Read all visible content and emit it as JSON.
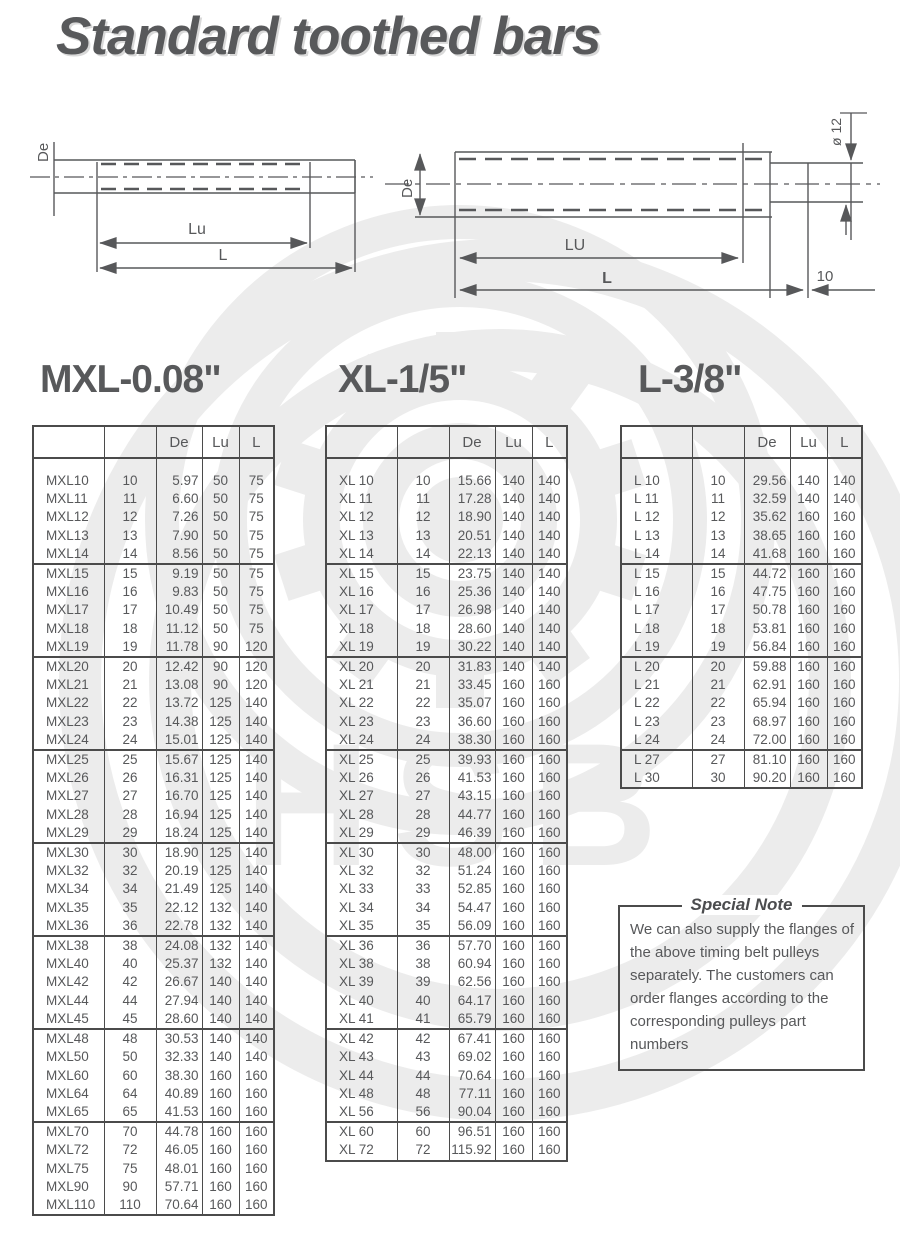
{
  "page": {
    "title": "Standard toothed bars"
  },
  "drawings": {
    "left": {
      "de": "De",
      "lu": "Lu",
      "l": "L"
    },
    "right": {
      "de": "De",
      "lu": "LU",
      "l": "L",
      "diameter": "ø 12",
      "tail": "10"
    }
  },
  "sections": [
    {
      "heading": "MXL-0.08\"",
      "columns": {
        "de": "De",
        "lu": "Lu",
        "l": "L"
      },
      "groups": [
        [
          [
            "MXL10",
            "10",
            "5.97",
            "50",
            "75"
          ],
          [
            "MXL11",
            "11",
            "6.60",
            "50",
            "75"
          ],
          [
            "MXL12",
            "12",
            "7.26",
            "50",
            "75"
          ],
          [
            "MXL13",
            "13",
            "7.90",
            "50",
            "75"
          ],
          [
            "MXL14",
            "14",
            "8.56",
            "50",
            "75"
          ]
        ],
        [
          [
            "MXL15",
            "15",
            "9.19",
            "50",
            "75"
          ],
          [
            "MXL16",
            "16",
            "9.83",
            "50",
            "75"
          ],
          [
            "MXL17",
            "17",
            "10.49",
            "50",
            "75"
          ],
          [
            "MXL18",
            "18",
            "11.12",
            "50",
            "75"
          ],
          [
            "MXL19",
            "19",
            "11.78",
            "90",
            "120"
          ]
        ],
        [
          [
            "MXL20",
            "20",
            "12.42",
            "90",
            "120"
          ],
          [
            "MXL21",
            "21",
            "13.08",
            "90",
            "120"
          ],
          [
            "MXL22",
            "22",
            "13.72",
            "125",
            "140"
          ],
          [
            "MXL23",
            "23",
            "14.38",
            "125",
            "140"
          ],
          [
            "MXL24",
            "24",
            "15.01",
            "125",
            "140"
          ]
        ],
        [
          [
            "MXL25",
            "25",
            "15.67",
            "125",
            "140"
          ],
          [
            "MXL26",
            "26",
            "16.31",
            "125",
            "140"
          ],
          [
            "MXL27",
            "27",
            "16.70",
            "125",
            "140"
          ],
          [
            "MXL28",
            "28",
            "16.94",
            "125",
            "140"
          ],
          [
            "MXL29",
            "29",
            "18.24",
            "125",
            "140"
          ]
        ],
        [
          [
            "MXL30",
            "30",
            "18.90",
            "125",
            "140"
          ],
          [
            "MXL32",
            "32",
            "20.19",
            "125",
            "140"
          ],
          [
            "MXL34",
            "34",
            "21.49",
            "125",
            "140"
          ],
          [
            "MXL35",
            "35",
            "22.12",
            "132",
            "140"
          ],
          [
            "MXL36",
            "36",
            "22.78",
            "132",
            "140"
          ]
        ],
        [
          [
            "MXL38",
            "38",
            "24.08",
            "132",
            "140"
          ],
          [
            "MXL40",
            "40",
            "25.37",
            "132",
            "140"
          ],
          [
            "MXL42",
            "42",
            "26.67",
            "140",
            "140"
          ],
          [
            "MXL44",
            "44",
            "27.94",
            "140",
            "140"
          ],
          [
            "MXL45",
            "45",
            "28.60",
            "140",
            "140"
          ]
        ],
        [
          [
            "MXL48",
            "48",
            "30.53",
            "140",
            "140"
          ],
          [
            "MXL50",
            "50",
            "32.33",
            "140",
            "140"
          ],
          [
            "MXL60",
            "60",
            "38.30",
            "160",
            "160"
          ],
          [
            "MXL64",
            "64",
            "40.89",
            "160",
            "160"
          ],
          [
            "MXL65",
            "65",
            "41.53",
            "160",
            "160"
          ]
        ],
        [
          [
            "MXL70",
            "70",
            "44.78",
            "160",
            "160"
          ],
          [
            "MXL72",
            "72",
            "46.05",
            "160",
            "160"
          ],
          [
            "MXL75",
            "75",
            "48.01",
            "160",
            "160"
          ],
          [
            "MXL90",
            "90",
            "57.71",
            "160",
            "160"
          ],
          [
            "MXL110",
            "110",
            "70.64",
            "160",
            "160"
          ]
        ]
      ]
    },
    {
      "heading": "XL-1/5\"",
      "columns": {
        "de": "De",
        "lu": "Lu",
        "l": "L"
      },
      "groups": [
        [
          [
            "XL 10",
            "10",
            "15.66",
            "140",
            "140"
          ],
          [
            "XL 11",
            "11",
            "17.28",
            "140",
            "140"
          ],
          [
            "XL 12",
            "12",
            "18.90",
            "140",
            "140"
          ],
          [
            "XL 13",
            "13",
            "20.51",
            "140",
            "140"
          ],
          [
            "XL 14",
            "14",
            "22.13",
            "140",
            "140"
          ]
        ],
        [
          [
            "XL 15",
            "15",
            "23.75",
            "140",
            "140"
          ],
          [
            "XL 16",
            "16",
            "25.36",
            "140",
            "140"
          ],
          [
            "XL 17",
            "17",
            "26.98",
            "140",
            "140"
          ],
          [
            "XL 18",
            "18",
            "28.60",
            "140",
            "140"
          ],
          [
            "XL 19",
            "19",
            "30.22",
            "140",
            "140"
          ]
        ],
        [
          [
            "XL 20",
            "20",
            "31.83",
            "140",
            "140"
          ],
          [
            "XL 21",
            "21",
            "33.45",
            "160",
            "160"
          ],
          [
            "XL 22",
            "22",
            "35.07",
            "160",
            "160"
          ],
          [
            "XL 23",
            "23",
            "36.60",
            "160",
            "160"
          ],
          [
            "XL 24",
            "24",
            "38.30",
            "160",
            "160"
          ]
        ],
        [
          [
            "XL 25",
            "25",
            "39.93",
            "160",
            "160"
          ],
          [
            "XL 26",
            "26",
            "41.53",
            "160",
            "160"
          ],
          [
            "XL 27",
            "27",
            "43.15",
            "160",
            "160"
          ],
          [
            "XL 28",
            "28",
            "44.77",
            "160",
            "160"
          ],
          [
            "XL 29",
            "29",
            "46.39",
            "160",
            "160"
          ]
        ],
        [
          [
            "XL 30",
            "30",
            "48.00",
            "160",
            "160"
          ],
          [
            "XL 32",
            "32",
            "51.24",
            "160",
            "160"
          ],
          [
            "XL 33",
            "33",
            "52.85",
            "160",
            "160"
          ],
          [
            "XL 34",
            "34",
            "54.47",
            "160",
            "160"
          ],
          [
            "XL 35",
            "35",
            "56.09",
            "160",
            "160"
          ]
        ],
        [
          [
            "XL 36",
            "36",
            "57.70",
            "160",
            "160"
          ],
          [
            "XL 38",
            "38",
            "60.94",
            "160",
            "160"
          ],
          [
            "XL 39",
            "39",
            "62.56",
            "160",
            "160"
          ],
          [
            "XL 40",
            "40",
            "64.17",
            "160",
            "160"
          ],
          [
            "XL 41",
            "41",
            "65.79",
            "160",
            "160"
          ]
        ],
        [
          [
            "XL 42",
            "42",
            "67.41",
            "160",
            "160"
          ],
          [
            "XL 43",
            "43",
            "69.02",
            "160",
            "160"
          ],
          [
            "XL 44",
            "44",
            "70.64",
            "160",
            "160"
          ],
          [
            "XL 48",
            "48",
            "77.11",
            "160",
            "160"
          ],
          [
            "XL 56",
            "56",
            "90.04",
            "160",
            "160"
          ]
        ],
        [
          [
            "XL 60",
            "60",
            "96.51",
            "160",
            "160"
          ],
          [
            "XL 72",
            "72",
            "115.92",
            "160",
            "160"
          ]
        ]
      ]
    },
    {
      "heading": "L-3/8\"",
      "columns": {
        "de": "De",
        "lu": "Lu",
        "l": "L"
      },
      "groups": [
        [
          [
            "L 10",
            "10",
            "29.56",
            "140",
            "140"
          ],
          [
            "L 11",
            "11",
            "32.59",
            "140",
            "140"
          ],
          [
            "L 12",
            "12",
            "35.62",
            "160",
            "160"
          ],
          [
            "L 13",
            "13",
            "38.65",
            "160",
            "160"
          ],
          [
            "L 14",
            "14",
            "41.68",
            "160",
            "160"
          ]
        ],
        [
          [
            "L 15",
            "15",
            "44.72",
            "160",
            "160"
          ],
          [
            "L 16",
            "16",
            "47.75",
            "160",
            "160"
          ],
          [
            "L 17",
            "17",
            "50.78",
            "160",
            "160"
          ],
          [
            "L 18",
            "18",
            "53.81",
            "160",
            "160"
          ],
          [
            "L 19",
            "19",
            "56.84",
            "160",
            "160"
          ]
        ],
        [
          [
            "L 20",
            "20",
            "59.88",
            "160",
            "160"
          ],
          [
            "L 21",
            "21",
            "62.91",
            "160",
            "160"
          ],
          [
            "L 22",
            "22",
            "65.94",
            "160",
            "160"
          ],
          [
            "L 23",
            "23",
            "68.97",
            "160",
            "160"
          ],
          [
            "L 24",
            "24",
            "72.00",
            "160",
            "160"
          ]
        ],
        [
          [
            "L 27",
            "27",
            "81.10",
            "160",
            "160"
          ],
          [
            "L 30",
            "30",
            "90.20",
            "160",
            "160"
          ]
        ]
      ]
    }
  ],
  "special_note": {
    "title": "Special Note",
    "text": "We can also supply the flanges of the above timing belt pulleys separately. The customers can order flanges according to the corresponding pulleys part numbers"
  },
  "colors": {
    "ink": "#57585a",
    "border": "#4b4b4b",
    "watermark": "#ececec"
  }
}
